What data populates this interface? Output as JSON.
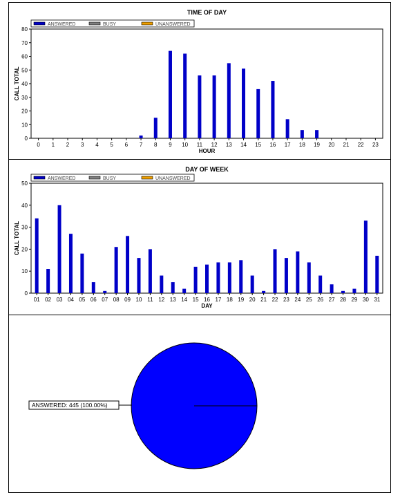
{
  "colors": {
    "answered": "#0000c8",
    "busy": "#808080",
    "unanswered": "#f0a000",
    "pie": "#0000ff"
  },
  "legend": [
    "ANSWERED",
    "BUSY",
    "UNANSWERED"
  ],
  "chart_data": [
    {
      "type": "bar",
      "title": "TIME OF DAY",
      "xlabel": "HOUR",
      "ylabel": "CALL TOTAL",
      "ylim": [
        0,
        80
      ],
      "yticks": [
        "0",
        "10",
        "20",
        "30",
        "40",
        "50",
        "60",
        "70",
        "80"
      ],
      "categories": [
        "0",
        "1",
        "2",
        "3",
        "4",
        "5",
        "6",
        "7",
        "8",
        "9",
        "10",
        "11",
        "12",
        "13",
        "14",
        "15",
        "16",
        "17",
        "18",
        "19",
        "20",
        "21",
        "22",
        "23"
      ],
      "series": [
        {
          "name": "ANSWERED",
          "values": [
            0,
            0,
            0,
            0,
            0,
            0,
            0,
            2,
            15,
            64,
            62,
            46,
            46,
            55,
            51,
            36,
            42,
            14,
            6,
            6,
            0,
            0,
            0,
            0
          ]
        },
        {
          "name": "BUSY",
          "values": [
            0,
            0,
            0,
            0,
            0,
            0,
            0,
            0,
            0,
            0,
            0,
            0,
            0,
            0,
            0,
            0,
            0,
            0,
            0,
            0,
            0,
            0,
            0,
            0
          ]
        },
        {
          "name": "UNANSWERED",
          "values": [
            0,
            0,
            0,
            0,
            0,
            0,
            0,
            0,
            0,
            0,
            0,
            0,
            0,
            0,
            0,
            0,
            0,
            0,
            0,
            0,
            0,
            0,
            0,
            0
          ]
        }
      ],
      "legend_position": "top-left"
    },
    {
      "type": "bar",
      "title": "DAY OF WEEK",
      "xlabel": "DAY",
      "ylabel": "CALL TOTAL",
      "ylim": [
        0,
        50
      ],
      "yticks": [
        "0",
        "10",
        "20",
        "30",
        "40",
        "50"
      ],
      "categories": [
        "01",
        "02",
        "03",
        "04",
        "05",
        "06",
        "07",
        "08",
        "09",
        "10",
        "11",
        "12",
        "13",
        "14",
        "15",
        "16",
        "17",
        "18",
        "19",
        "20",
        "21",
        "22",
        "23",
        "24",
        "25",
        "26",
        "27",
        "28",
        "29",
        "30",
        "31"
      ],
      "series": [
        {
          "name": "ANSWERED",
          "values": [
            34,
            11,
            40,
            27,
            18,
            5,
            1,
            21,
            26,
            16,
            20,
            8,
            5,
            2,
            12,
            13,
            14,
            14,
            15,
            8,
            1,
            20,
            16,
            19,
            14,
            8,
            4,
            1,
            2,
            33,
            17
          ]
        },
        {
          "name": "BUSY",
          "values": [
            0,
            0,
            0,
            0,
            0,
            0,
            0,
            0,
            0,
            0,
            0,
            0,
            0,
            0,
            0,
            0,
            0,
            0,
            0,
            0,
            0,
            0,
            0,
            0,
            0,
            0,
            0,
            0,
            0,
            0,
            0
          ]
        },
        {
          "name": "UNANSWERED",
          "values": [
            0,
            0,
            0,
            0,
            0,
            0,
            0,
            0,
            0,
            0,
            0,
            0,
            0,
            0,
            0,
            0,
            0,
            0,
            0,
            0,
            0,
            0,
            0,
            0,
            0,
            0,
            0,
            0,
            0,
            0,
            0
          ]
        }
      ],
      "legend_position": "top-left"
    },
    {
      "type": "pie",
      "slices": [
        {
          "name": "ANSWERED",
          "value": 445,
          "percent": 100.0
        }
      ],
      "labels": [
        "ANSWERED: 445 (100.00%)"
      ]
    }
  ]
}
